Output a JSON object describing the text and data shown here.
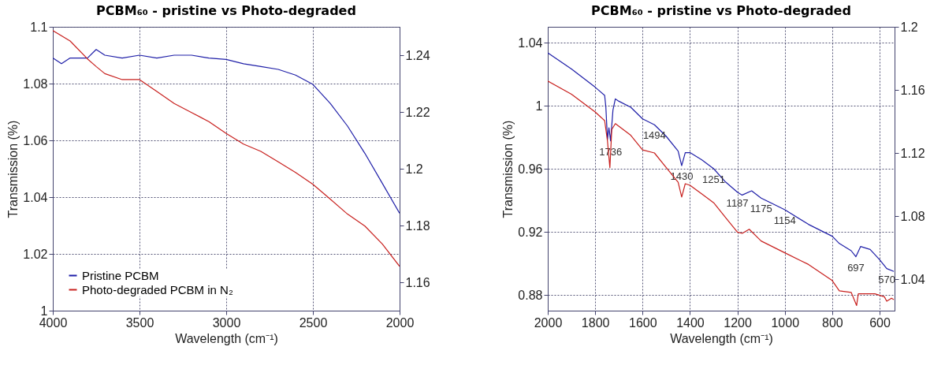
{
  "chart_data": [
    {
      "type": "line",
      "title": "PCBM₆₀ - pristine vs Photo-degraded",
      "xlabel": "Wavelength (cm⁻¹)",
      "ylabel": "Transmission (%)",
      "xlim": [
        4000,
        2000
      ],
      "xticks": [
        4000,
        3500,
        3000,
        2500,
        2000
      ],
      "ylim": [
        1.0,
        1.1
      ],
      "yticks": [
        1.0,
        1.02,
        1.04,
        1.06,
        1.08,
        1.1
      ],
      "y2lim": [
        1.15,
        1.25
      ],
      "y2ticks": [
        1.16,
        1.18,
        1.2,
        1.22,
        1.24
      ],
      "grid": true,
      "legend": "bottom left",
      "series": [
        {
          "name": "Pristine PCBM",
          "color": "#1f1fa8",
          "axis": "y",
          "x": [
            4000,
            3950,
            3900,
            3800,
            3750,
            3700,
            3600,
            3500,
            3400,
            3300,
            3200,
            3100,
            3000,
            2900,
            2800,
            2700,
            2600,
            2500,
            2400,
            2300,
            2200,
            2100,
            2000
          ],
          "values": [
            1.089,
            1.087,
            1.089,
            1.089,
            1.092,
            1.09,
            1.089,
            1.09,
            1.089,
            1.09,
            1.09,
            1.089,
            1.0885,
            1.087,
            1.086,
            1.085,
            1.083,
            1.0797,
            1.073,
            1.065,
            1.0554,
            1.0449,
            1.0343
          ]
        },
        {
          "name": "Photo-degraded PCBM in N₂",
          "color": "#c8201e",
          "axis": "y2",
          "x": [
            4000,
            3900,
            3800,
            3750,
            3700,
            3600,
            3500,
            3400,
            3300,
            3200,
            3100,
            3000,
            2900,
            2800,
            2700,
            2600,
            2500,
            2400,
            2300,
            2200,
            2100,
            2000
          ],
          "values": [
            1.2487,
            1.245,
            1.2387,
            1.236,
            1.2335,
            1.2314,
            1.2314,
            1.2272,
            1.223,
            1.2198,
            1.2166,
            1.2124,
            1.2087,
            1.2061,
            1.2024,
            1.1987,
            1.1945,
            1.1893,
            1.184,
            1.1798,
            1.1735,
            1.1656
          ]
        }
      ]
    },
    {
      "type": "line",
      "title": "PCBM₆₀ - pristine vs Photo-degraded",
      "xlabel": "Wavelength (cm⁻¹)",
      "ylabel": "Transmission (%)",
      "xlim": [
        2000,
        537
      ],
      "xticks": [
        2000,
        1800,
        1600,
        1400,
        1200,
        1000,
        800,
        600
      ],
      "ylim": [
        0.87,
        1.05
      ],
      "yticks": [
        0.88,
        0.92,
        0.96,
        1.0,
        1.04
      ],
      "y2lim": [
        1.02,
        1.2
      ],
      "y2ticks": [
        1.04,
        1.08,
        1.12,
        1.16,
        1.2
      ],
      "grid": true,
      "legend": "bottom left",
      "annotations": [
        {
          "text": "1736",
          "x": 1735,
          "y": 0.9777
        },
        {
          "text": "1494",
          "x": 1550,
          "y": 0.9879
        },
        {
          "text": "1430",
          "x": 1435,
          "y": 0.9619
        },
        {
          "text": "1251",
          "x": 1300,
          "y": 0.96
        },
        {
          "text": "1187",
          "x": 1200,
          "y": 0.9451
        },
        {
          "text": "1175",
          "x": 1100,
          "y": 0.9414
        },
        {
          "text": "1154",
          "x": 1000,
          "y": 0.934
        },
        {
          "text": "697",
          "x": 700,
          "y": 0.9042
        },
        {
          "text": "570",
          "x": 570,
          "y": 0.8967
        }
      ],
      "series": [
        {
          "name": "Pristine PCBM",
          "color": "#1f1fa8",
          "axis": "y",
          "x": [
            2000,
            1900,
            1800,
            1760,
            1755,
            1748,
            1742,
            1735,
            1725,
            1715,
            1700,
            1650,
            1600,
            1550,
            1500,
            1450,
            1435,
            1420,
            1400,
            1350,
            1300,
            1250,
            1200,
            1180,
            1140,
            1100,
            1000,
            900,
            800,
            770,
            720,
            700,
            680,
            640,
            600,
            570,
            540
          ],
          "values": [
            1.0335,
            1.0233,
            1.0117,
            1.0065,
            0.9991,
            0.9786,
            0.986,
            0.9777,
            0.9972,
            1.0043,
            1.0028,
            0.999,
            0.9916,
            0.9879,
            0.9805,
            0.9712,
            0.9619,
            0.9702,
            0.9702,
            0.9656,
            0.96,
            0.9516,
            0.9451,
            0.9433,
            0.946,
            0.9414,
            0.934,
            0.9247,
            0.9172,
            0.9126,
            0.908,
            0.9042,
            0.9107,
            0.9088,
            0.9023,
            0.8967,
            0.8949
          ]
        },
        {
          "name": "Photo-degraded PCBM in N₂",
          "color": "#c8201e",
          "axis": "y2",
          "x": [
            2000,
            1900,
            1800,
            1760,
            1748,
            1738,
            1730,
            1715,
            1650,
            1600,
            1550,
            1500,
            1450,
            1435,
            1420,
            1400,
            1350,
            1300,
            1250,
            1200,
            1180,
            1150,
            1100,
            1000,
            900,
            800,
            770,
            720,
            697,
            690,
            620,
            580,
            570,
            550,
            540
          ],
          "values": [
            1.1656,
            1.1572,
            1.146,
            1.1405,
            1.1274,
            1.1107,
            1.1349,
            1.1386,
            1.1312,
            1.1219,
            1.12,
            1.1107,
            1.1014,
            1.0921,
            1.1005,
            1.0995,
            1.094,
            1.0884,
            1.0791,
            1.0698,
            1.069,
            1.0716,
            1.0642,
            1.0567,
            1.0493,
            1.0391,
            1.0326,
            1.0316,
            1.0233,
            1.0307,
            1.0307,
            1.0288,
            1.026,
            1.0279,
            1.027
          ]
        }
      ]
    }
  ]
}
